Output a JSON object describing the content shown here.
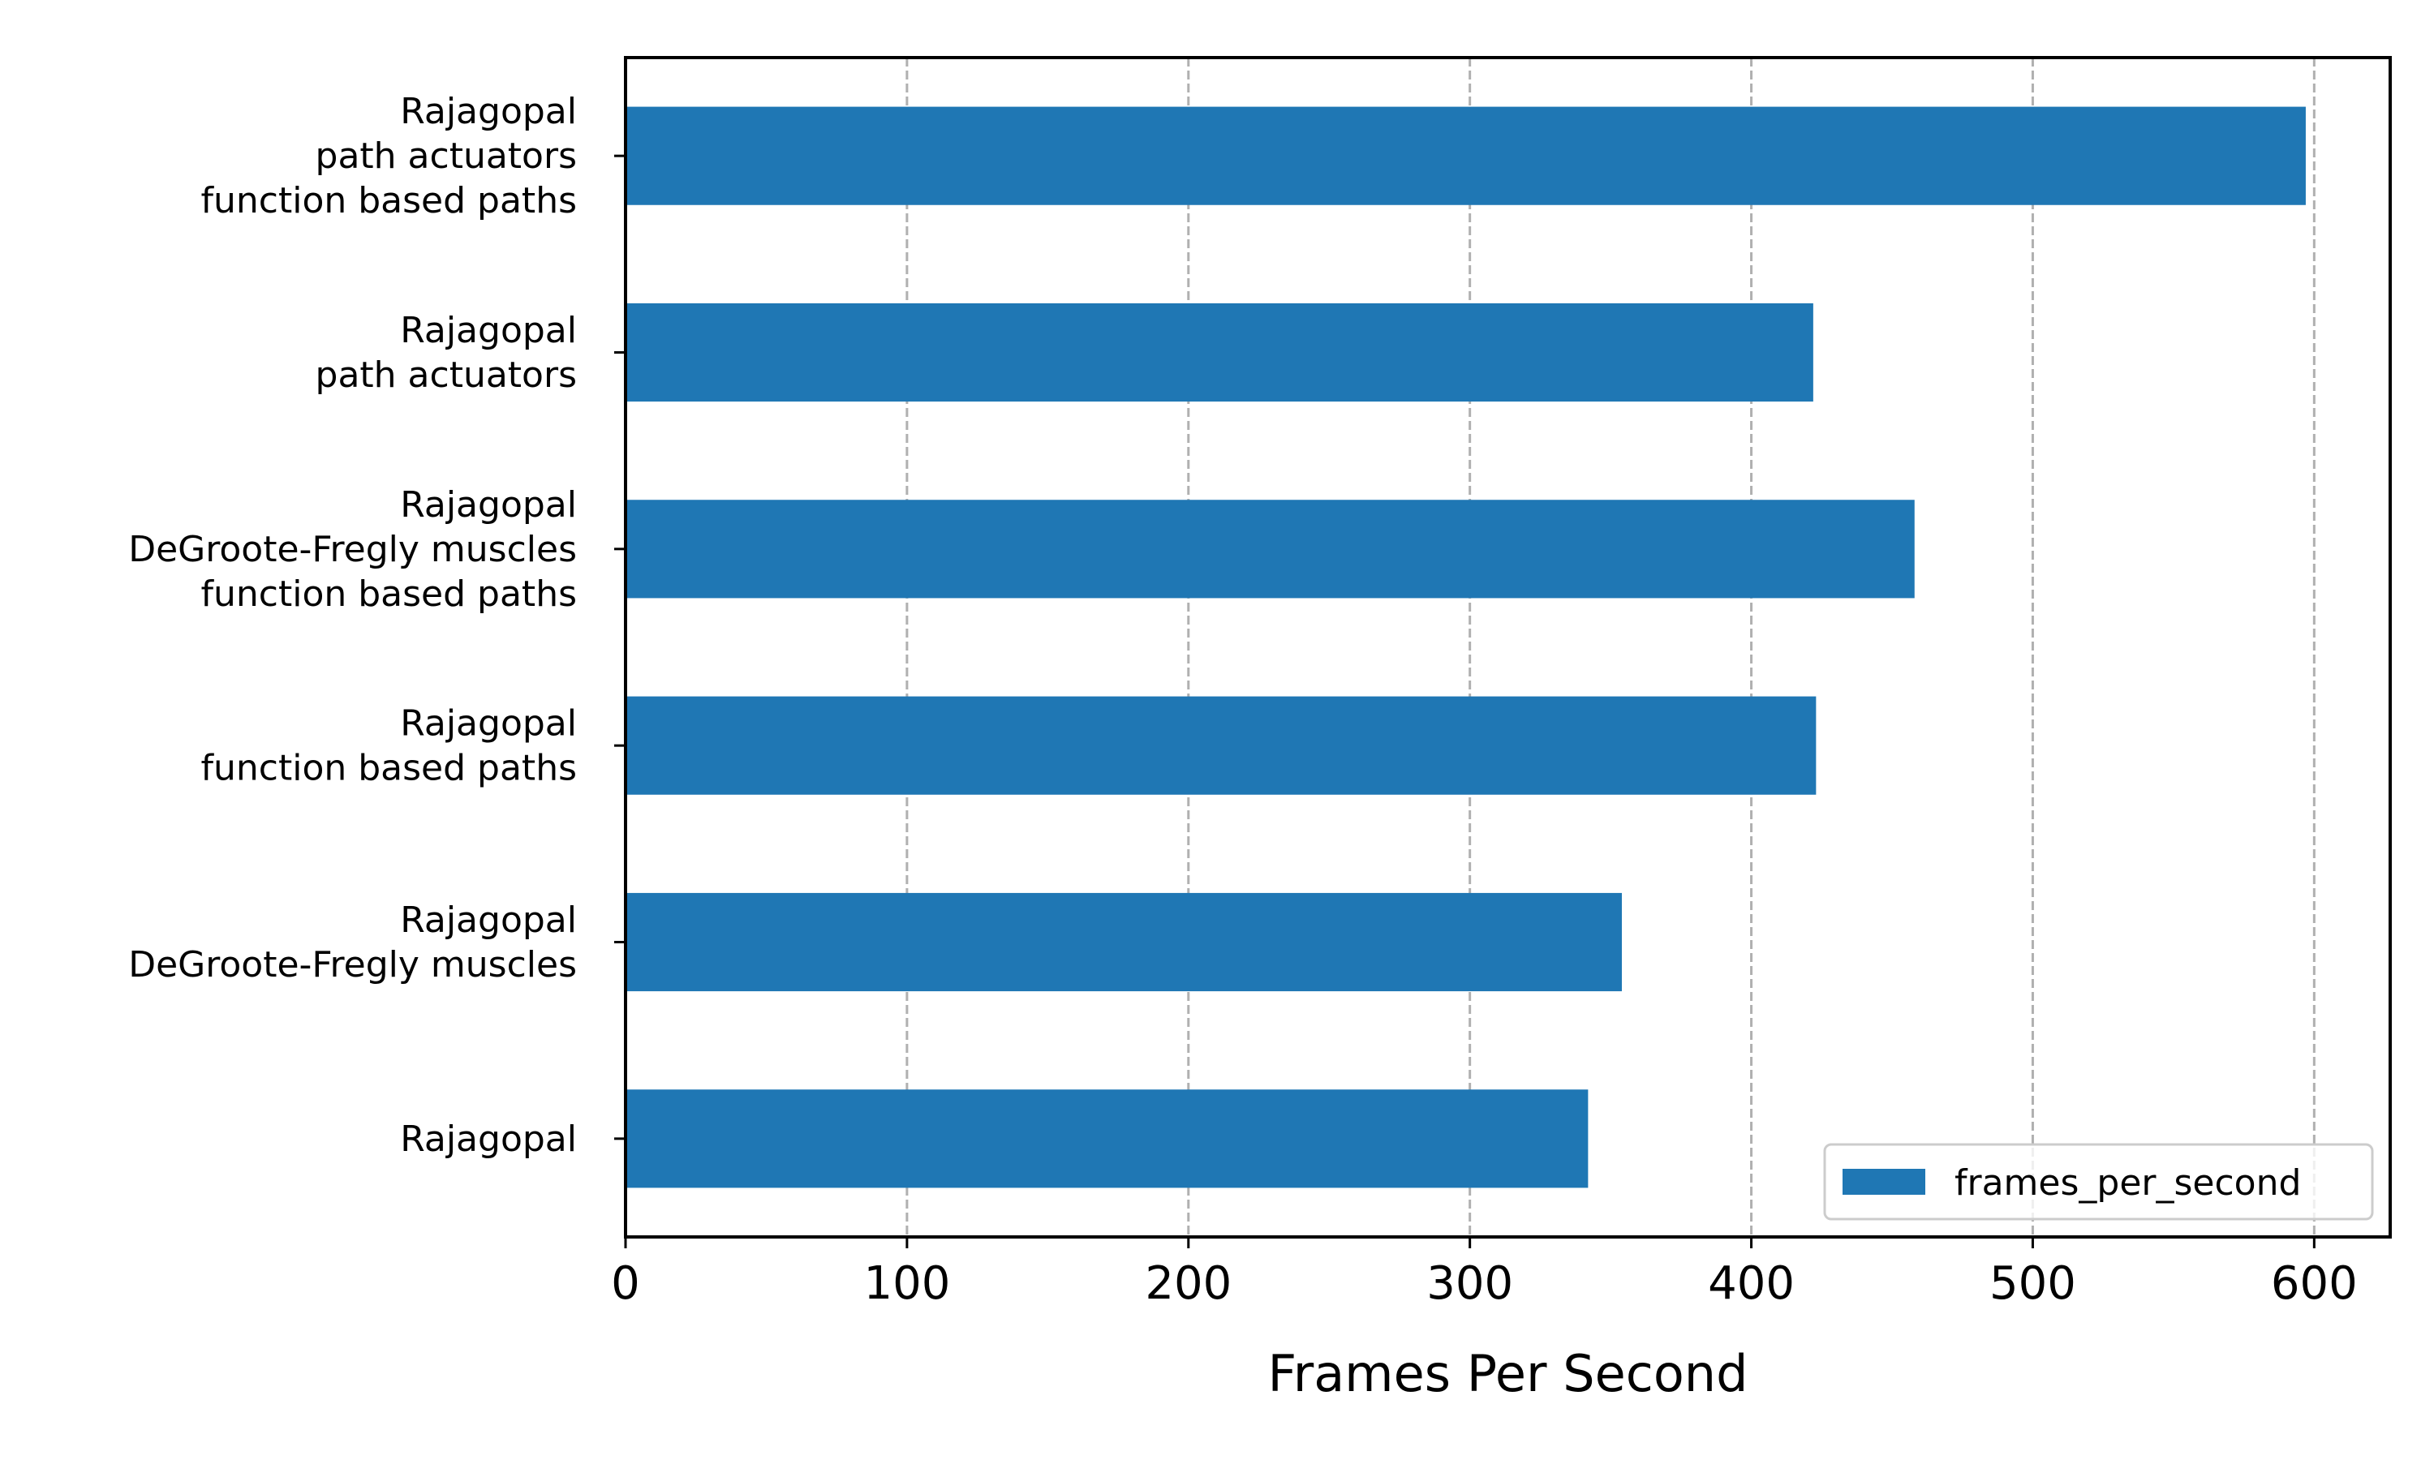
{
  "chart_data": {
    "type": "bar",
    "orientation": "horizontal",
    "categories": [
      [
        "Rajagopal"
      ],
      [
        "Rajagopal",
        "DeGroote-Fregly muscles"
      ],
      [
        "Rajagopal",
        "function based paths"
      ],
      [
        "Rajagopal",
        "DeGroote-Fregly muscles",
        "function based paths"
      ],
      [
        "Rajagopal",
        "path actuators"
      ],
      [
        "Rajagopal",
        "path actuators",
        "function based paths"
      ]
    ],
    "series": [
      {
        "name": "frames_per_second",
        "color": "#1f77b4",
        "values": [
          342,
          354,
          423,
          458,
          422,
          597
        ]
      }
    ],
    "title": "",
    "xlabel": "Frames Per Second",
    "ylabel": "",
    "xlim": [
      0,
      627
    ],
    "xticks": [
      0,
      100,
      200,
      300,
      400,
      500,
      600
    ],
    "grid": {
      "axis": "x",
      "style": "dashed",
      "color": "#b0b0b0"
    },
    "legend": {
      "position": "lower-right",
      "entries": [
        "frames_per_second"
      ]
    }
  }
}
